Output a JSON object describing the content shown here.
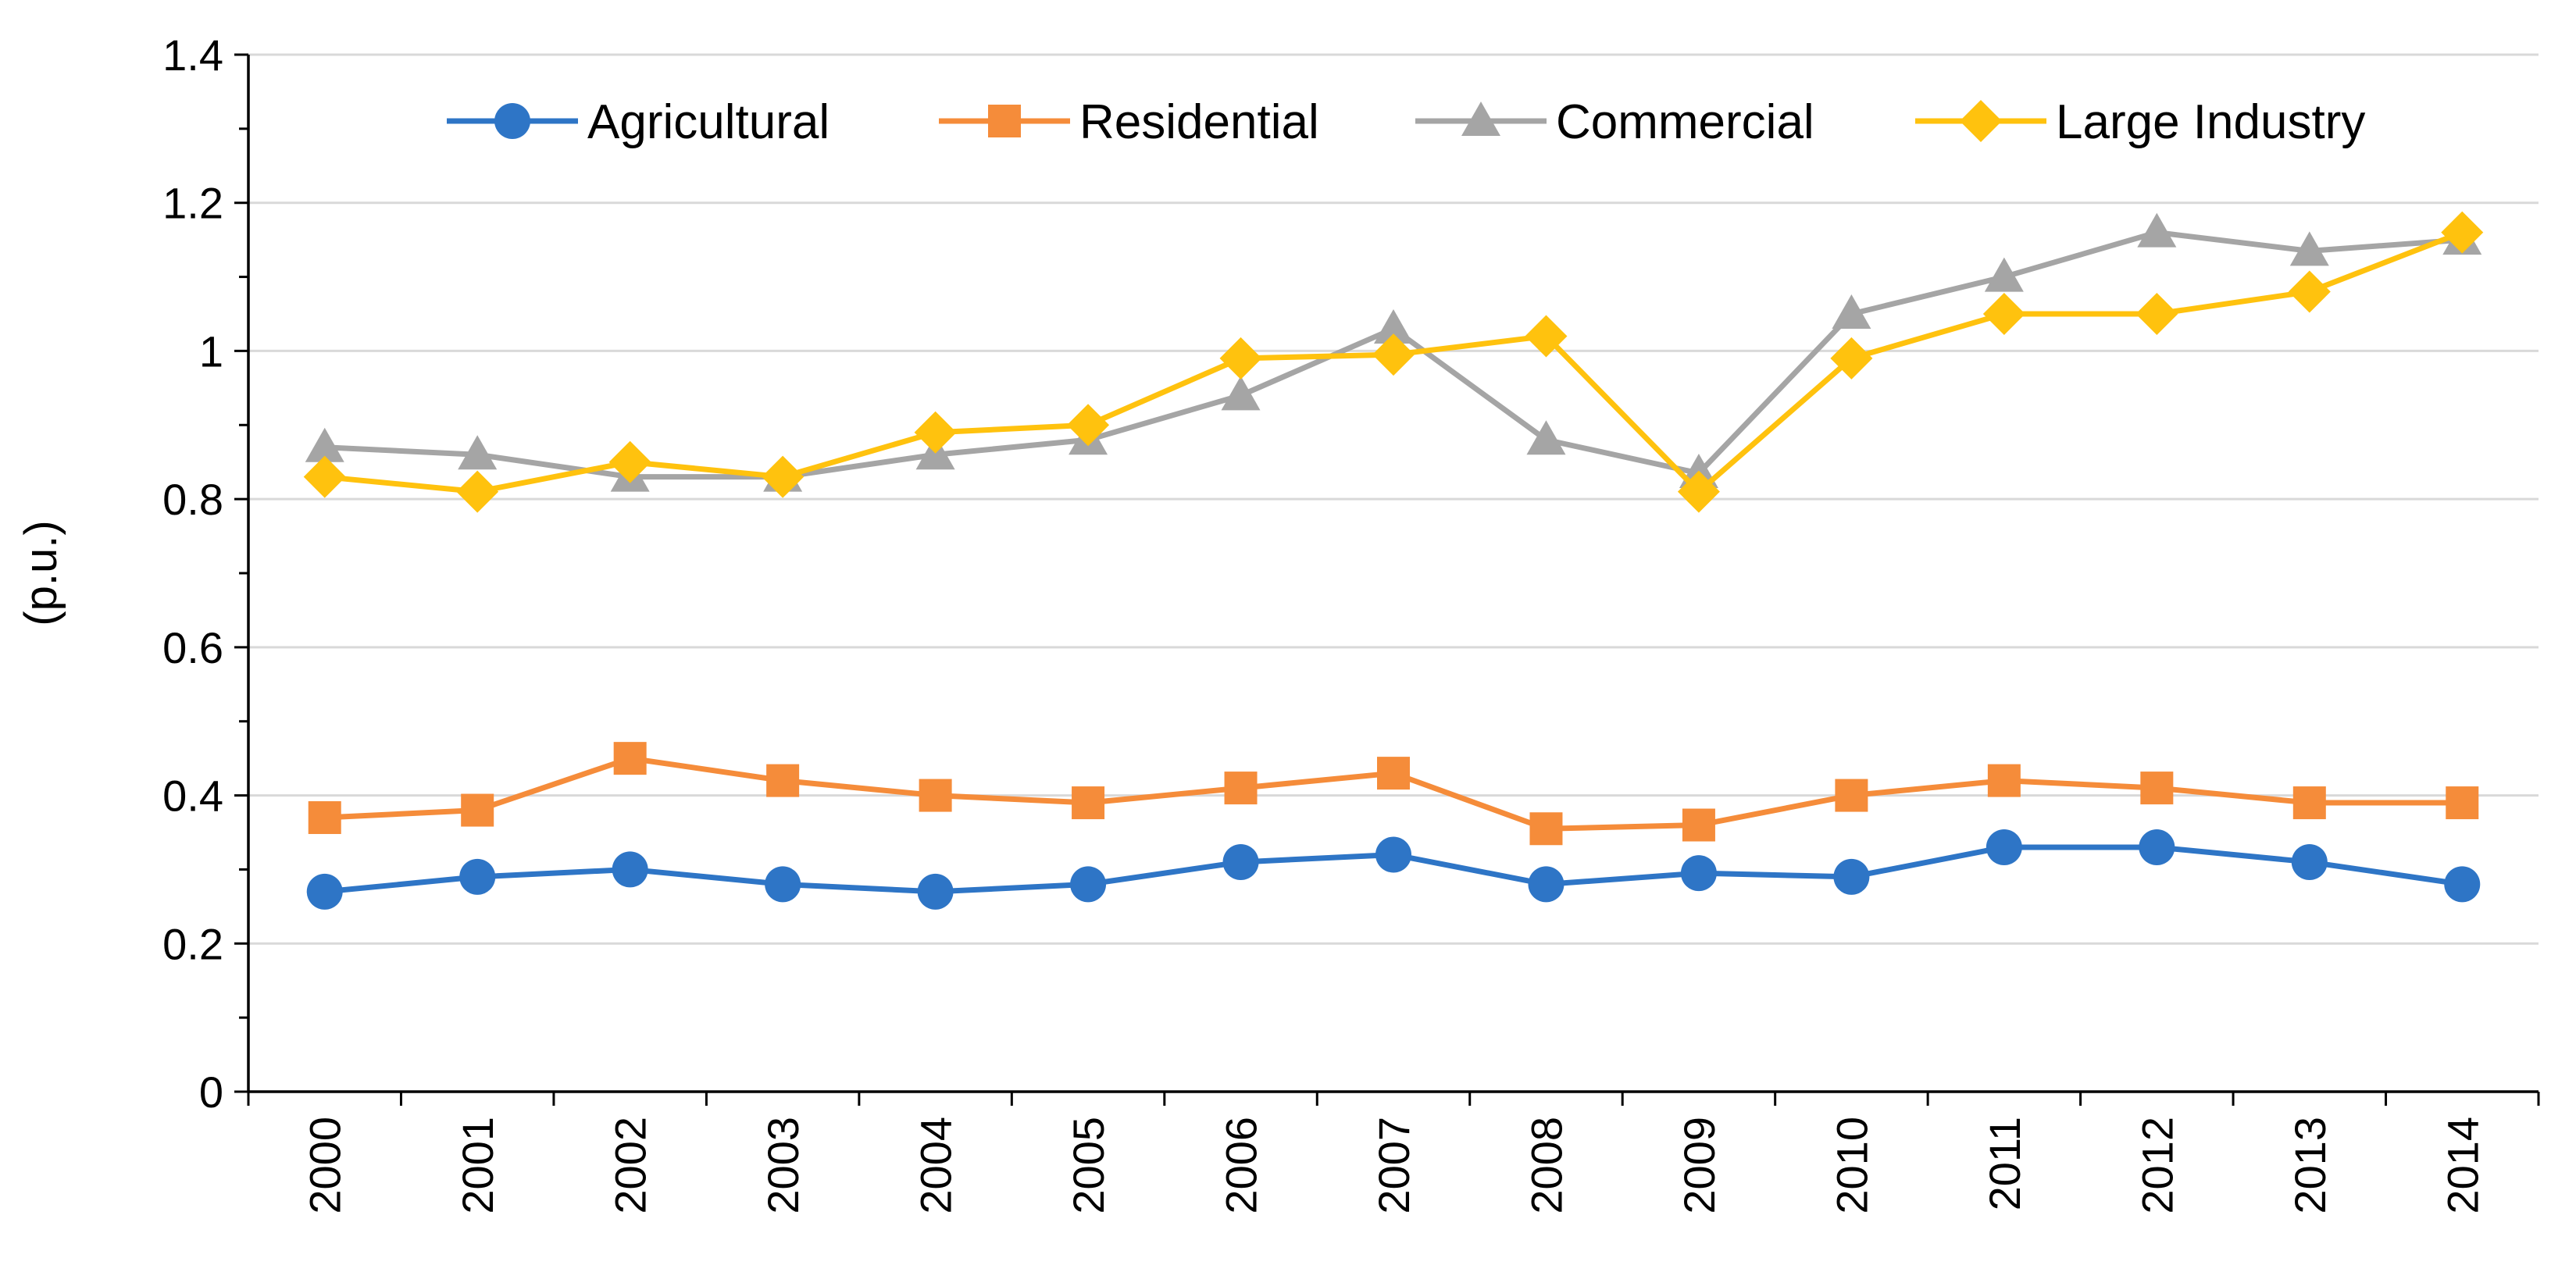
{
  "chart_data": {
    "type": "line",
    "title": "",
    "xlabel": "",
    "ylabel": "(p.u.)",
    "ylim": [
      0,
      1.4
    ],
    "yticks": [
      0,
      0.2,
      0.4,
      0.6,
      0.8,
      1,
      1.2,
      1.4
    ],
    "ytick_labels": [
      "0",
      "0.2",
      "0.4",
      "0.6",
      "0.8",
      "1",
      "1.2",
      "1.4"
    ],
    "grid": true,
    "legend_position": "top",
    "categories": [
      "2000",
      "2001",
      "2002",
      "2003",
      "2004",
      "2005",
      "2006",
      "2007",
      "2008",
      "2009",
      "2010",
      "2011",
      "2012",
      "2013",
      "2014"
    ],
    "series": [
      {
        "name": "Agricultural",
        "color": "#2E75C6",
        "marker": "circle",
        "values": [
          0.27,
          0.29,
          0.3,
          0.28,
          0.27,
          0.28,
          0.31,
          0.32,
          0.28,
          0.295,
          0.29,
          0.33,
          0.33,
          0.31,
          0.28
        ]
      },
      {
        "name": "Residential",
        "color": "#F58C3A",
        "marker": "square",
        "values": [
          0.37,
          0.38,
          0.45,
          0.42,
          0.4,
          0.39,
          0.41,
          0.43,
          0.355,
          0.36,
          0.4,
          0.42,
          0.41,
          0.39,
          0.39
        ]
      },
      {
        "name": "Commercial",
        "color": "#A5A5A5",
        "marker": "triangle",
        "values": [
          0.87,
          0.86,
          0.83,
          0.83,
          0.86,
          0.88,
          0.94,
          1.03,
          0.88,
          0.835,
          1.05,
          1.1,
          1.16,
          1.135,
          1.15
        ]
      },
      {
        "name": "Large Industry",
        "color": "#FFC20E",
        "marker": "diamond",
        "values": [
          0.83,
          0.81,
          0.85,
          0.83,
          0.89,
          0.9,
          0.99,
          0.995,
          1.02,
          0.81,
          0.99,
          1.05,
          1.05,
          1.08,
          1.16
        ]
      }
    ]
  }
}
